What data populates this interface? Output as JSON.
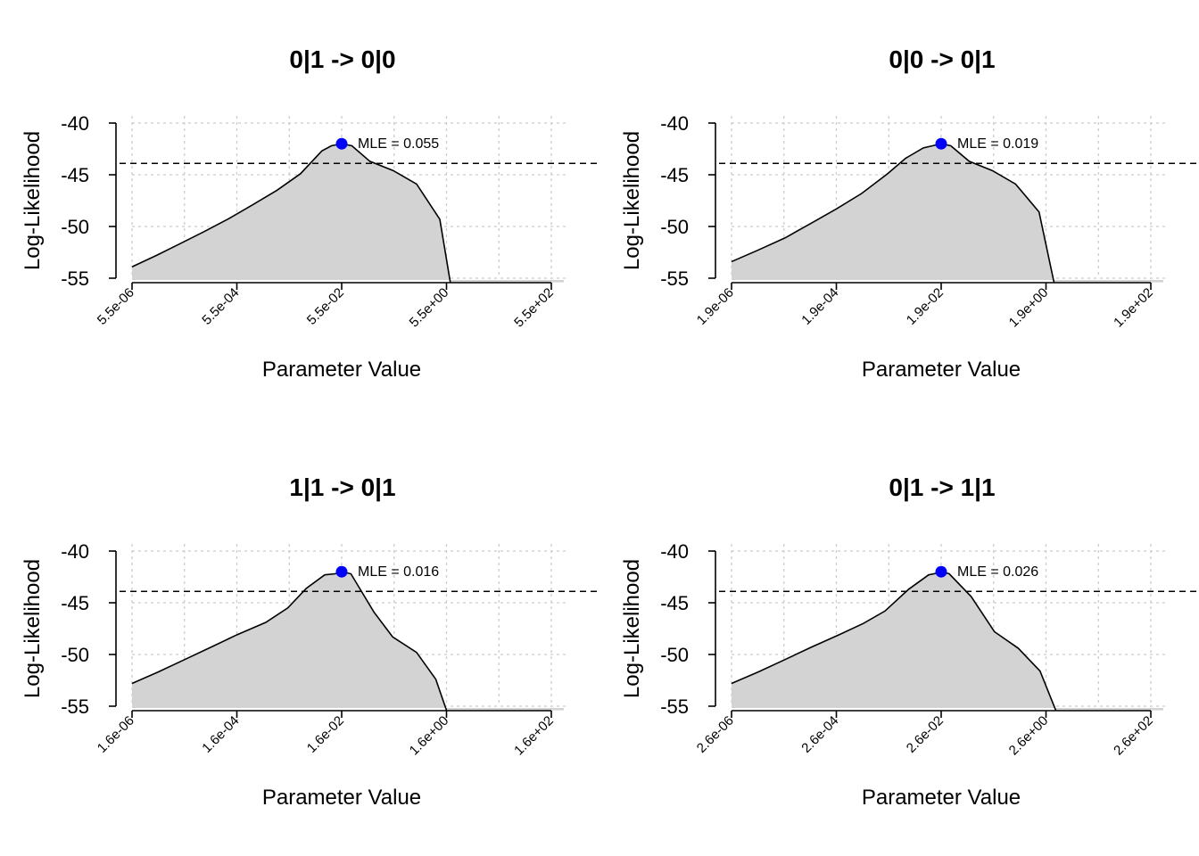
{
  "chart_data": [
    {
      "type": "area",
      "title": "0|1 -> 0|0",
      "xlabel": "Parameter Value",
      "ylabel": "Log-Likelihood",
      "x_scale": "log10",
      "xlim": [
        5.5e-06,
        550
      ],
      "ylim": [
        -55,
        -40
      ],
      "xticks": [
        5.5e-06,
        0.00055,
        0.055,
        5.5,
        550
      ],
      "xtick_labels": [
        "5.5e-06",
        "5.5e-04",
        "5.5e-02",
        "5.5e+00",
        "5.5e+02"
      ],
      "yticks": [
        -40,
        -45,
        -50,
        -55
      ],
      "ytick_labels": [
        "-40",
        "-45",
        "-50",
        "-55"
      ],
      "grid": true,
      "profile": {
        "x": [
          5.5e-06,
          1.6e-05,
          4.4e-05,
          0.00013,
          0.0004,
          0.0011,
          0.0032,
          0.009,
          0.023,
          0.035,
          0.055,
          0.086,
          0.19,
          0.53,
          1.48,
          4.1,
          6.5,
          550
        ],
        "y": [
          -53.9,
          -52.8,
          -51.7,
          -50.5,
          -49.2,
          -47.9,
          -46.5,
          -44.9,
          -42.7,
          -42.2,
          -42.0,
          -42.2,
          -43.7,
          -44.6,
          -45.9,
          -49.3,
          -55.4,
          -55.4
        ]
      },
      "threshold": -43.9,
      "mle": {
        "x": 0.055,
        "y": -42.0,
        "label": "MLE = 0.055"
      },
      "colors": {
        "fill": "#d3d3d3",
        "line": "#000000",
        "mle_point": "#0000ff",
        "grid": "#cccccc"
      }
    },
    {
      "type": "area",
      "title": "0|0 -> 0|1",
      "xlabel": "Parameter Value",
      "ylabel": "Log-Likelihood",
      "x_scale": "log10",
      "xlim": [
        1.9e-06,
        190
      ],
      "ylim": [
        -55,
        -40
      ],
      "xticks": [
        1.9e-06,
        0.00019,
        0.019,
        1.9,
        190
      ],
      "xtick_labels": [
        "1.9e-06",
        "1.9e-04",
        "1.9e-02",
        "1.9e+00",
        "1.9e+02"
      ],
      "yticks": [
        -40,
        -45,
        -50,
        -55
      ],
      "ytick_labels": [
        "-40",
        "-45",
        "-50",
        "-55"
      ],
      "grid": true,
      "profile": {
        "x": [
          1.9e-06,
          6e-06,
          2e-05,
          6.2e-05,
          0.00019,
          0.00058,
          0.0018,
          0.004,
          0.0087,
          0.013,
          0.019,
          0.029,
          0.065,
          0.18,
          0.5,
          1.4,
          2.7,
          190
        ],
        "y": [
          -53.4,
          -52.3,
          -51.1,
          -49.7,
          -48.3,
          -46.8,
          -44.9,
          -43.4,
          -42.4,
          -42.2,
          -42.0,
          -42.2,
          -43.7,
          -44.6,
          -45.9,
          -48.6,
          -55.4,
          -55.4
        ]
      },
      "threshold": -43.9,
      "mle": {
        "x": 0.019,
        "y": -42.0,
        "label": "MLE = 0.019"
      },
      "colors": {
        "fill": "#d3d3d3",
        "line": "#000000",
        "mle_point": "#0000ff",
        "grid": "#cccccc"
      }
    },
    {
      "type": "area",
      "title": "1|1 -> 0|1",
      "xlabel": "Parameter Value",
      "ylabel": "Log-Likelihood",
      "x_scale": "log10",
      "xlim": [
        1.6e-06,
        160
      ],
      "ylim": [
        -55,
        -40
      ],
      "xticks": [
        1.6e-06,
        0.00016,
        0.016,
        1.6,
        160
      ],
      "xtick_labels": [
        "1.6e-06",
        "1.6e-04",
        "1.6e-02",
        "1.6e+00",
        "1.6e+02"
      ],
      "yticks": [
        -40,
        -45,
        -50,
        -55
      ],
      "ytick_labels": [
        "-40",
        "-45",
        "-50",
        "-55"
      ],
      "grid": true,
      "profile": {
        "x": [
          1.6e-06,
          5e-06,
          1.6e-05,
          5.1e-05,
          0.00016,
          0.00057,
          0.0015,
          0.0034,
          0.0076,
          0.012,
          0.016,
          0.024,
          0.066,
          0.15,
          0.43,
          1.0,
          1.6,
          160
        ],
        "y": [
          -52.8,
          -51.7,
          -50.5,
          -49.3,
          -48.1,
          -46.9,
          -45.5,
          -43.6,
          -42.3,
          -42.2,
          -42.0,
          -42.2,
          -45.9,
          -48.3,
          -49.8,
          -52.4,
          -55.4,
          -55.4
        ]
      },
      "threshold": -43.9,
      "mle": {
        "x": 0.016,
        "y": -42.0,
        "label": "MLE = 0.016"
      },
      "colors": {
        "fill": "#d3d3d3",
        "line": "#000000",
        "mle_point": "#0000ff",
        "grid": "#cccccc"
      }
    },
    {
      "type": "area",
      "title": "0|1 -> 1|1",
      "xlabel": "Parameter Value",
      "ylabel": "Log-Likelihood",
      "x_scale": "log10",
      "xlim": [
        2.6e-06,
        260
      ],
      "ylim": [
        -55,
        -40
      ],
      "xticks": [
        2.6e-06,
        0.00026,
        0.026,
        2.6,
        260
      ],
      "xtick_labels": [
        "2.6e-06",
        "2.6e-04",
        "2.6e-02",
        "2.6e+00",
        "2.6e+02"
      ],
      "yticks": [
        -40,
        -45,
        -50,
        -55
      ],
      "ytick_labels": [
        "-40",
        "-45",
        "-50",
        "-55"
      ],
      "grid": true,
      "profile": {
        "x": [
          2.6e-06,
          8.3e-06,
          2.7e-05,
          8.6e-05,
          0.00029,
          0.00085,
          0.0022,
          0.0062,
          0.015,
          0.019,
          0.026,
          0.037,
          0.097,
          0.27,
          0.77,
          2.0,
          4.0,
          260
        ],
        "y": [
          -52.8,
          -51.7,
          -50.5,
          -49.3,
          -48.1,
          -47.0,
          -45.8,
          -43.7,
          -42.3,
          -42.2,
          -42.0,
          -42.2,
          -44.4,
          -47.8,
          -49.4,
          -51.6,
          -55.4,
          -55.4
        ]
      },
      "threshold": -43.9,
      "mle": {
        "x": 0.026,
        "y": -42.0,
        "label": "MLE = 0.026"
      },
      "colors": {
        "fill": "#d3d3d3",
        "line": "#000000",
        "mle_point": "#0000ff",
        "grid": "#cccccc"
      }
    }
  ]
}
